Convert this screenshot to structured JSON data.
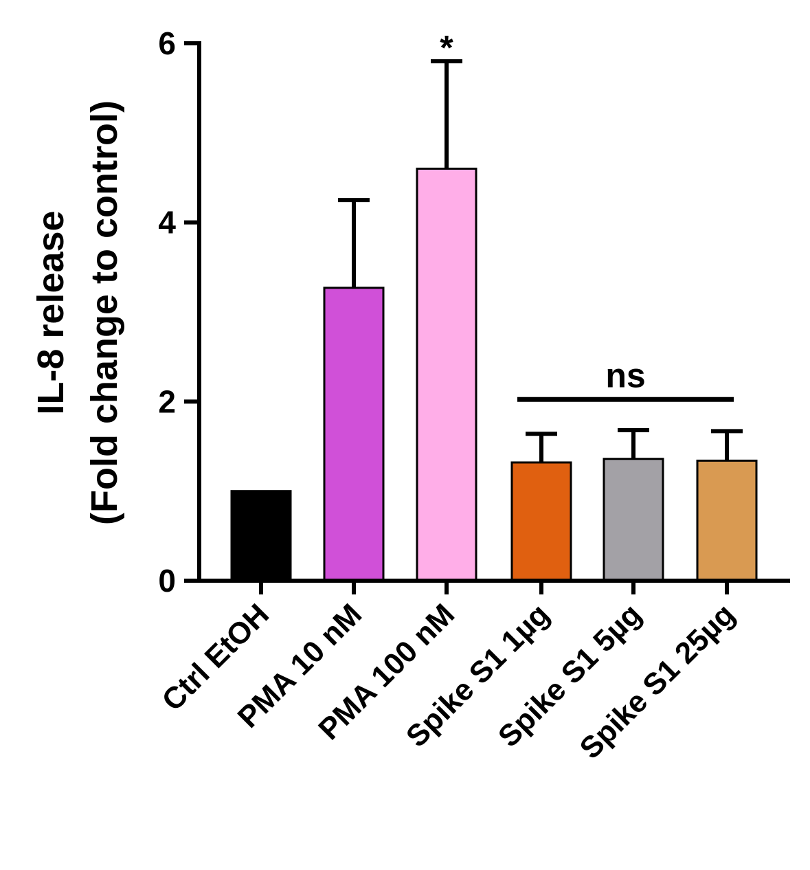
{
  "chart_data": {
    "type": "bar",
    "title": "",
    "xlabel": "",
    "ylabel_line1": "IL-8 release",
    "ylabel_line2": "(Fold change to control)",
    "ylim": [
      0,
      6
    ],
    "yticks": [
      0,
      2,
      4,
      6
    ],
    "ytick_labels": [
      "0",
      "2",
      "4",
      "6"
    ],
    "categories": [
      "Ctrl EtOH",
      "PMA 10 nM",
      "PMA 100 nM",
      "Spike S1 1µg",
      "Spike S1 5µg",
      "Spike S1 25µg"
    ],
    "values": [
      1.0,
      3.27,
      4.6,
      1.32,
      1.36,
      1.34
    ],
    "error_upper": [
      0,
      0.98,
      1.2,
      0.32,
      0.32,
      0.33
    ],
    "colors": [
      "#000000",
      "#d050d8",
      "#ffaee8",
      "#e06010",
      "#a3a1a6",
      "#d99a52"
    ],
    "annotations": [
      {
        "text": "*",
        "category_index": 2,
        "y": 6.05
      },
      {
        "text": "ns",
        "from_index": 3,
        "to_index": 5,
        "y": 2.1
      }
    ],
    "grid": false,
    "legend": "none"
  }
}
